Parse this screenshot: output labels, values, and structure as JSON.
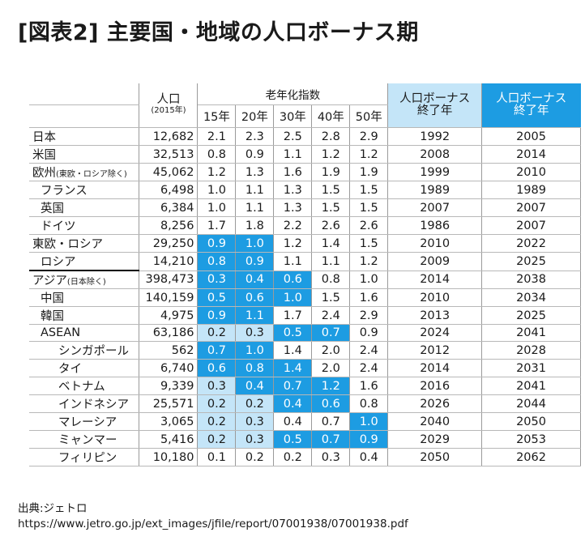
{
  "title": "[図表2]  主要国・地域の人口ボーナス期",
  "header": {
    "population": "人口",
    "population_unit": "(2015年)",
    "elderly_index": "老年化指数",
    "years": [
      "15年",
      "20年",
      "30年",
      "40年",
      "50年"
    ],
    "bonus_end_line1": "人口ボーナス",
    "bonus_end_line2": "終了年",
    "bonus_end2_line1": "人口ボーナス",
    "bonus_end2_line2": "終了年"
  },
  "rows": [
    {
      "name": "日本",
      "note": "",
      "level": 0,
      "pop": "12,682",
      "idx": [
        "2.1",
        "2.3",
        "2.5",
        "2.8",
        "2.9"
      ],
      "hl": [
        "",
        "",
        "",
        "",
        ""
      ],
      "y1": "1992",
      "y2": "2005"
    },
    {
      "name": "米国",
      "note": "",
      "level": 0,
      "pop": "32,513",
      "idx": [
        "0.8",
        "0.9",
        "1.1",
        "1.2",
        "1.2"
      ],
      "hl": [
        "",
        "",
        "",
        "",
        ""
      ],
      "y1": "2008",
      "y2": "2014"
    },
    {
      "name": "欧州",
      "note": "(東欧・ロシア除く)",
      "level": 0,
      "pop": "45,062",
      "idx": [
        "1.2",
        "1.3",
        "1.6",
        "1.9",
        "1.9"
      ],
      "hl": [
        "",
        "",
        "",
        "",
        ""
      ],
      "y1": "1999",
      "y2": "2010"
    },
    {
      "name": "フランス",
      "note": "",
      "level": 1,
      "pop": "6,498",
      "idx": [
        "1.0",
        "1.1",
        "1.3",
        "1.5",
        "1.5"
      ],
      "hl": [
        "",
        "",
        "",
        "",
        ""
      ],
      "y1": "1989",
      "y2": "1989"
    },
    {
      "name": "英国",
      "note": "",
      "level": 1,
      "pop": "6,384",
      "idx": [
        "1.0",
        "1.1",
        "1.3",
        "1.5",
        "1.5"
      ],
      "hl": [
        "",
        "",
        "",
        "",
        ""
      ],
      "y1": "2007",
      "y2": "2007"
    },
    {
      "name": "ドイツ",
      "note": "",
      "level": 1,
      "pop": "8,256",
      "idx": [
        "1.7",
        "1.8",
        "2.2",
        "2.6",
        "2.6"
      ],
      "hl": [
        "",
        "",
        "",
        "",
        ""
      ],
      "y1": "1986",
      "y2": "2007"
    },
    {
      "name": "東欧・ロシア",
      "note": "",
      "level": 0,
      "pop": "29,250",
      "idx": [
        "0.9",
        "1.0",
        "1.2",
        "1.4",
        "1.5"
      ],
      "hl": [
        "d",
        "d",
        "",
        "",
        ""
      ],
      "y1": "2010",
      "y2": "2022"
    },
    {
      "name": "ロシア",
      "note": "",
      "level": 1,
      "pop": "14,210",
      "idx": [
        "0.8",
        "0.9",
        "1.1",
        "1.1",
        "1.2"
      ],
      "hl": [
        "d",
        "d",
        "",
        "",
        ""
      ],
      "y1": "2009",
      "y2": "2025"
    },
    {
      "name": "アジア",
      "note": "(日本除く)",
      "level": 0,
      "pop": "398,473",
      "idx": [
        "0.3",
        "0.4",
        "0.6",
        "0.8",
        "1.0"
      ],
      "hl": [
        "d",
        "d",
        "d",
        "",
        ""
      ],
      "y1": "2014",
      "y2": "2038"
    },
    {
      "name": "中国",
      "note": "",
      "level": 1,
      "pop": "140,159",
      "idx": [
        "0.5",
        "0.6",
        "1.0",
        "1.5",
        "1.6"
      ],
      "hl": [
        "d",
        "d",
        "d",
        "",
        ""
      ],
      "y1": "2010",
      "y2": "2034"
    },
    {
      "name": "韓国",
      "note": "",
      "level": 1,
      "pop": "4,975",
      "idx": [
        "0.9",
        "1.1",
        "1.7",
        "2.4",
        "2.9"
      ],
      "hl": [
        "d",
        "d",
        "",
        "",
        ""
      ],
      "y1": "2013",
      "y2": "2025"
    },
    {
      "name": "ASEAN",
      "note": "",
      "level": 1,
      "pop": "63,186",
      "idx": [
        "0.2",
        "0.3",
        "0.5",
        "0.7",
        "0.9"
      ],
      "hl": [
        "l",
        "l",
        "d",
        "d",
        ""
      ],
      "y1": "2024",
      "y2": "2041"
    },
    {
      "name": "シンガポール",
      "note": "",
      "level": 2,
      "pop": "562",
      "idx": [
        "0.7",
        "1.0",
        "1.4",
        "2.0",
        "2.4"
      ],
      "hl": [
        "d",
        "d",
        "",
        "",
        ""
      ],
      "y1": "2012",
      "y2": "2028"
    },
    {
      "name": "タイ",
      "note": "",
      "level": 2,
      "pop": "6,740",
      "idx": [
        "0.6",
        "0.8",
        "1.4",
        "2.0",
        "2.4"
      ],
      "hl": [
        "d",
        "d",
        "d",
        "",
        ""
      ],
      "y1": "2014",
      "y2": "2031"
    },
    {
      "name": "ベトナム",
      "note": "",
      "level": 2,
      "pop": "9,339",
      "idx": [
        "0.3",
        "0.4",
        "0.7",
        "1.2",
        "1.6"
      ],
      "hl": [
        "l",
        "d",
        "d",
        "d",
        ""
      ],
      "y1": "2016",
      "y2": "2041"
    },
    {
      "name": "インドネシア",
      "note": "",
      "level": 2,
      "pop": "25,571",
      "idx": [
        "0.2",
        "0.2",
        "0.4",
        "0.6",
        "0.8"
      ],
      "hl": [
        "l",
        "l",
        "d",
        "d",
        ""
      ],
      "y1": "2026",
      "y2": "2044"
    },
    {
      "name": "マレーシア",
      "note": "",
      "level": 2,
      "pop": "3,065",
      "idx": [
        "0.2",
        "0.3",
        "0.4",
        "0.7",
        "1.0"
      ],
      "hl": [
        "l",
        "l",
        "",
        "",
        "d"
      ],
      "y1": "2040",
      "y2": "2050"
    },
    {
      "name": "ミャンマー",
      "note": "",
      "level": 2,
      "pop": "5,416",
      "idx": [
        "0.2",
        "0.3",
        "0.5",
        "0.7",
        "0.9"
      ],
      "hl": [
        "l",
        "l",
        "d",
        "d",
        "d"
      ],
      "y1": "2029",
      "y2": "2053"
    },
    {
      "name": "フィリピン",
      "note": "",
      "level": 2,
      "pop": "10,180",
      "idx": [
        "0.1",
        "0.2",
        "0.2",
        "0.3",
        "0.4"
      ],
      "hl": [
        "",
        "",
        "",
        "",
        ""
      ],
      "y1": "2050",
      "y2": "2062"
    }
  ],
  "colors": {
    "light_blue": "#c4e5f8",
    "dark_blue": "#1d9ce2"
  },
  "source": {
    "label": "出典:ジェトロ",
    "url": "https://www.jetro.go.jp/ext_images/jfile/report/07001938/07001938.pdf"
  }
}
